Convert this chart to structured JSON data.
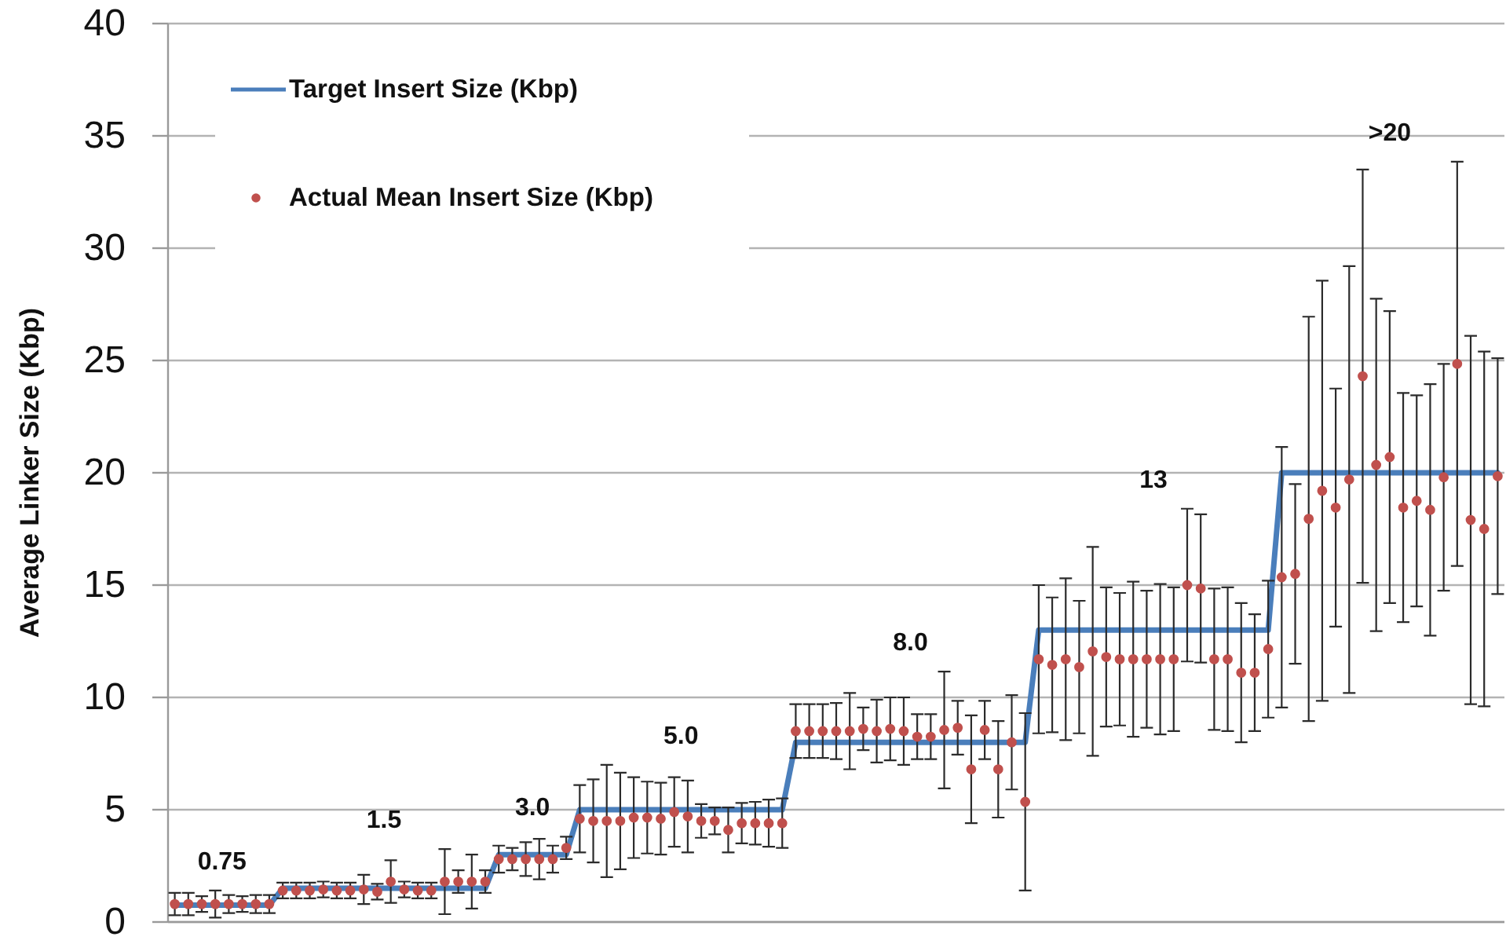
{
  "chart_data": {
    "type": "line",
    "ylabel": "Average Linker Size (Kbp)",
    "categories": [
      null,
      null,
      null,
      null,
      null,
      null,
      null,
      null,
      null,
      null,
      null,
      null,
      null,
      null,
      null,
      null,
      null,
      null,
      null,
      null,
      null,
      null,
      null,
      null,
      null,
      null,
      null,
      null,
      null,
      null,
      null,
      null,
      null,
      null,
      null,
      null,
      null,
      null,
      null,
      null,
      null,
      null,
      null,
      null,
      null,
      null,
      null,
      null,
      null,
      null,
      null,
      null,
      null,
      null,
      null,
      null,
      null,
      null,
      null,
      null,
      null,
      null,
      null,
      null,
      null,
      null,
      null,
      null,
      null,
      null,
      null,
      null,
      null,
      null,
      null,
      null,
      null,
      null,
      null,
      null,
      null,
      null,
      null,
      null,
      null,
      null,
      null,
      null,
      null,
      null,
      null,
      null,
      null,
      null,
      null,
      null,
      null,
      null,
      null
    ],
    "series": [
      {
        "name": "Target Insert Size (Kbp)",
        "color": "#4a7ebb",
        "marker": "none",
        "values": [
          0.75,
          0.75,
          0.75,
          0.75,
          0.75,
          0.75,
          0.75,
          0.75,
          1.5,
          1.5,
          1.5,
          1.5,
          1.5,
          1.5,
          1.5,
          1.5,
          1.5,
          1.5,
          1.5,
          1.5,
          1.5,
          1.5,
          1.5,
          1.5,
          3,
          3,
          3,
          3,
          3,
          3,
          5,
          5,
          5,
          5,
          5,
          5,
          5,
          5,
          5,
          5,
          5,
          5,
          5,
          5,
          5,
          5,
          8,
          8,
          8,
          8,
          8,
          8,
          8,
          8,
          8,
          8,
          8,
          8,
          8,
          8,
          8,
          8,
          8,
          8,
          13,
          13,
          13,
          13,
          13,
          13,
          13,
          13,
          13,
          13,
          13,
          13,
          13,
          13,
          13,
          13,
          13,
          13,
          20,
          20,
          20,
          20,
          20,
          20,
          20,
          20,
          20,
          20,
          20,
          20,
          20,
          20,
          20,
          20,
          20
        ]
      },
      {
        "name": "Actual Mean Insert Size (Kbp)",
        "type": "scatter",
        "color": "#c0504d",
        "marker": "circle",
        "values": [
          0.8,
          0.8,
          0.8,
          0.8,
          0.8,
          0.8,
          0.8,
          0.8,
          1.4,
          1.4,
          1.4,
          1.45,
          1.4,
          1.4,
          1.45,
          1.35,
          1.8,
          1.45,
          1.4,
          1.4,
          1.8,
          1.8,
          1.8,
          1.8,
          2.8,
          2.8,
          2.8,
          2.8,
          2.8,
          3.3,
          4.6,
          4.5,
          4.5,
          4.5,
          4.65,
          4.65,
          4.6,
          4.9,
          4.7,
          4.5,
          4.5,
          4.1,
          4.4,
          4.4,
          4.4,
          4.4,
          8.5,
          8.5,
          8.5,
          8.5,
          8.5,
          8.6,
          8.5,
          8.6,
          8.5,
          8.25,
          8.25,
          8.55,
          8.65,
          6.8,
          8.55,
          6.8,
          8.0,
          5.35,
          11.7,
          11.45,
          11.7,
          11.35,
          12.05,
          11.8,
          11.7,
          11.7,
          11.7,
          11.7,
          11.7,
          15.0,
          14.85,
          11.7,
          11.7,
          11.1,
          11.1,
          12.15,
          15.35,
          15.5,
          17.95,
          19.2,
          18.45,
          19.7,
          24.3,
          20.35,
          20.7,
          18.45,
          18.75,
          18.35,
          19.8,
          24.85,
          17.9,
          17.5,
          19.85
        ],
        "errors": [
          0.5,
          0.5,
          0.35,
          0.6,
          0.4,
          0.35,
          0.4,
          0.4,
          0.35,
          0.35,
          0.35,
          0.35,
          0.35,
          0.35,
          0.65,
          0.35,
          0.95,
          0.35,
          0.35,
          0.35,
          1.45,
          0.5,
          1.2,
          0.5,
          0.6,
          0.5,
          0.75,
          0.9,
          0.6,
          0.5,
          1.5,
          1.85,
          2.5,
          2.15,
          1.8,
          1.6,
          1.6,
          1.55,
          1.6,
          0.75,
          0.6,
          1.0,
          0.9,
          0.95,
          1.05,
          1.1,
          1.2,
          1.2,
          1.2,
          1.25,
          1.7,
          0.95,
          1.4,
          1.4,
          1.5,
          1.0,
          1.0,
          2.6,
          1.2,
          2.4,
          1.3,
          2.15,
          2.1,
          3.95,
          3.3,
          3.0,
          3.6,
          2.95,
          4.65,
          3.1,
          2.95,
          3.45,
          3.05,
          3.35,
          3.2,
          3.4,
          3.3,
          3.15,
          3.2,
          3.1,
          2.6,
          3.05,
          5.8,
          4.0,
          9.0,
          9.35,
          5.3,
          9.5,
          9.2,
          7.4,
          6.5,
          5.1,
          4.7,
          5.6,
          5.05,
          9.0,
          8.2,
          7.9,
          5.25
        ]
      }
    ],
    "ylim": [
      0,
      40
    ],
    "yticks": [
      0,
      5,
      10,
      15,
      20,
      25,
      30,
      35,
      40
    ],
    "grid": "y",
    "legend": "top left",
    "annotations": [
      "0.75",
      "1.5",
      "3.0",
      "5.0",
      "8.0",
      "13",
      ">20"
    ]
  }
}
